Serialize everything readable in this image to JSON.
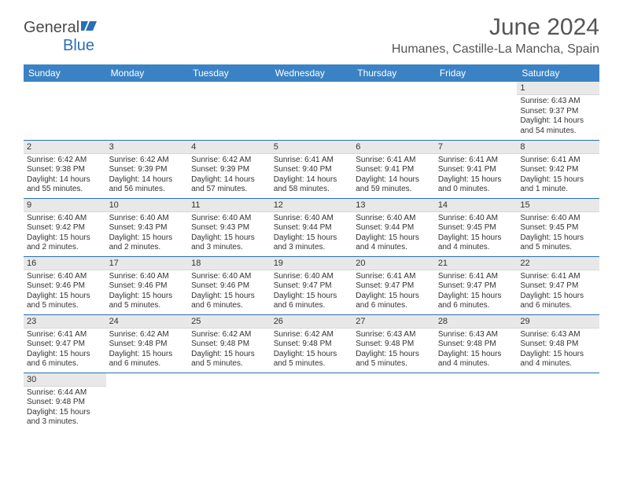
{
  "logo": {
    "text1": "General",
    "text2": "Blue"
  },
  "title": "June 2024",
  "location": "Humanes, Castille-La Mancha, Spain",
  "styling": {
    "header_bg": "#3b82c4",
    "header_text": "#ffffff",
    "border_color": "#2a6fb5",
    "daynum_bg": "#e8e8e8",
    "page_bg": "#ffffff",
    "title_color": "#555555",
    "body_text": "#333333",
    "title_fontsize": 30,
    "location_fontsize": 16,
    "header_fontsize": 12,
    "daynum_fontsize": 11,
    "content_fontsize": 10
  },
  "weekdays": [
    "Sunday",
    "Monday",
    "Tuesday",
    "Wednesday",
    "Thursday",
    "Friday",
    "Saturday"
  ],
  "weeks": [
    [
      null,
      null,
      null,
      null,
      null,
      null,
      {
        "n": "1",
        "sr": "6:43 AM",
        "ss": "9:37 PM",
        "dl": "14 hours and 54 minutes."
      }
    ],
    [
      {
        "n": "2",
        "sr": "6:42 AM",
        "ss": "9:38 PM",
        "dl": "14 hours and 55 minutes."
      },
      {
        "n": "3",
        "sr": "6:42 AM",
        "ss": "9:39 PM",
        "dl": "14 hours and 56 minutes."
      },
      {
        "n": "4",
        "sr": "6:42 AM",
        "ss": "9:39 PM",
        "dl": "14 hours and 57 minutes."
      },
      {
        "n": "5",
        "sr": "6:41 AM",
        "ss": "9:40 PM",
        "dl": "14 hours and 58 minutes."
      },
      {
        "n": "6",
        "sr": "6:41 AM",
        "ss": "9:41 PM",
        "dl": "14 hours and 59 minutes."
      },
      {
        "n": "7",
        "sr": "6:41 AM",
        "ss": "9:41 PM",
        "dl": "15 hours and 0 minutes."
      },
      {
        "n": "8",
        "sr": "6:41 AM",
        "ss": "9:42 PM",
        "dl": "15 hours and 1 minute."
      }
    ],
    [
      {
        "n": "9",
        "sr": "6:40 AM",
        "ss": "9:42 PM",
        "dl": "15 hours and 2 minutes."
      },
      {
        "n": "10",
        "sr": "6:40 AM",
        "ss": "9:43 PM",
        "dl": "15 hours and 2 minutes."
      },
      {
        "n": "11",
        "sr": "6:40 AM",
        "ss": "9:43 PM",
        "dl": "15 hours and 3 minutes."
      },
      {
        "n": "12",
        "sr": "6:40 AM",
        "ss": "9:44 PM",
        "dl": "15 hours and 3 minutes."
      },
      {
        "n": "13",
        "sr": "6:40 AM",
        "ss": "9:44 PM",
        "dl": "15 hours and 4 minutes."
      },
      {
        "n": "14",
        "sr": "6:40 AM",
        "ss": "9:45 PM",
        "dl": "15 hours and 4 minutes."
      },
      {
        "n": "15",
        "sr": "6:40 AM",
        "ss": "9:45 PM",
        "dl": "15 hours and 5 minutes."
      }
    ],
    [
      {
        "n": "16",
        "sr": "6:40 AM",
        "ss": "9:46 PM",
        "dl": "15 hours and 5 minutes."
      },
      {
        "n": "17",
        "sr": "6:40 AM",
        "ss": "9:46 PM",
        "dl": "15 hours and 5 minutes."
      },
      {
        "n": "18",
        "sr": "6:40 AM",
        "ss": "9:46 PM",
        "dl": "15 hours and 6 minutes."
      },
      {
        "n": "19",
        "sr": "6:40 AM",
        "ss": "9:47 PM",
        "dl": "15 hours and 6 minutes."
      },
      {
        "n": "20",
        "sr": "6:41 AM",
        "ss": "9:47 PM",
        "dl": "15 hours and 6 minutes."
      },
      {
        "n": "21",
        "sr": "6:41 AM",
        "ss": "9:47 PM",
        "dl": "15 hours and 6 minutes."
      },
      {
        "n": "22",
        "sr": "6:41 AM",
        "ss": "9:47 PM",
        "dl": "15 hours and 6 minutes."
      }
    ],
    [
      {
        "n": "23",
        "sr": "6:41 AM",
        "ss": "9:47 PM",
        "dl": "15 hours and 6 minutes."
      },
      {
        "n": "24",
        "sr": "6:42 AM",
        "ss": "9:48 PM",
        "dl": "15 hours and 6 minutes."
      },
      {
        "n": "25",
        "sr": "6:42 AM",
        "ss": "9:48 PM",
        "dl": "15 hours and 5 minutes."
      },
      {
        "n": "26",
        "sr": "6:42 AM",
        "ss": "9:48 PM",
        "dl": "15 hours and 5 minutes."
      },
      {
        "n": "27",
        "sr": "6:43 AM",
        "ss": "9:48 PM",
        "dl": "15 hours and 5 minutes."
      },
      {
        "n": "28",
        "sr": "6:43 AM",
        "ss": "9:48 PM",
        "dl": "15 hours and 4 minutes."
      },
      {
        "n": "29",
        "sr": "6:43 AM",
        "ss": "9:48 PM",
        "dl": "15 hours and 4 minutes."
      }
    ],
    [
      {
        "n": "30",
        "sr": "6:44 AM",
        "ss": "9:48 PM",
        "dl": "15 hours and 3 minutes."
      },
      null,
      null,
      null,
      null,
      null,
      null
    ]
  ],
  "labels": {
    "sunrise": "Sunrise:",
    "sunset": "Sunset:",
    "daylight": "Daylight:"
  }
}
